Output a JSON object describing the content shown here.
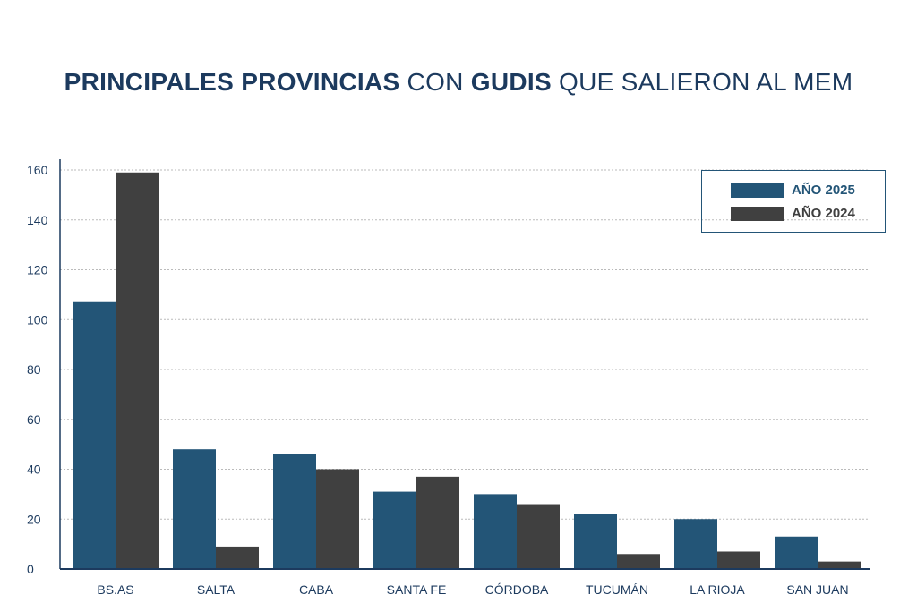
{
  "title": {
    "part1": "PRINCIPALES PROVINCIAS",
    "part2": " CON ",
    "part3": "GUDIS",
    "part4": " QUE SALIERON AL MEM"
  },
  "colors": {
    "s2025": "#235577",
    "s2024": "#404040",
    "axis": "#1c3a5e",
    "text": "#1c3a5e"
  },
  "chart_data": {
    "type": "bar",
    "title": "PRINCIPALES PROVINCIAS CON GUDIS QUE SALIERON AL MEM",
    "categories": [
      "BS.AS",
      "SALTA",
      "CABA",
      "SANTA FE",
      "CÓRDOBA",
      "TUCUMÁN",
      "LA RIOJA",
      "SAN JUAN"
    ],
    "series": [
      {
        "name": "AÑO 2025",
        "values": [
          107,
          48,
          46,
          31,
          30,
          22,
          20,
          13
        ]
      },
      {
        "name": "AÑO 2024",
        "values": [
          159,
          9,
          40,
          37,
          26,
          6,
          7,
          3
        ]
      }
    ],
    "ylim": [
      0,
      160
    ],
    "yticks": [
      "0",
      "20",
      "40",
      "60",
      "80",
      "100",
      "120",
      "140",
      "160"
    ],
    "grid": true,
    "legend": "top-right",
    "xlabel": "",
    "ylabel": ""
  }
}
